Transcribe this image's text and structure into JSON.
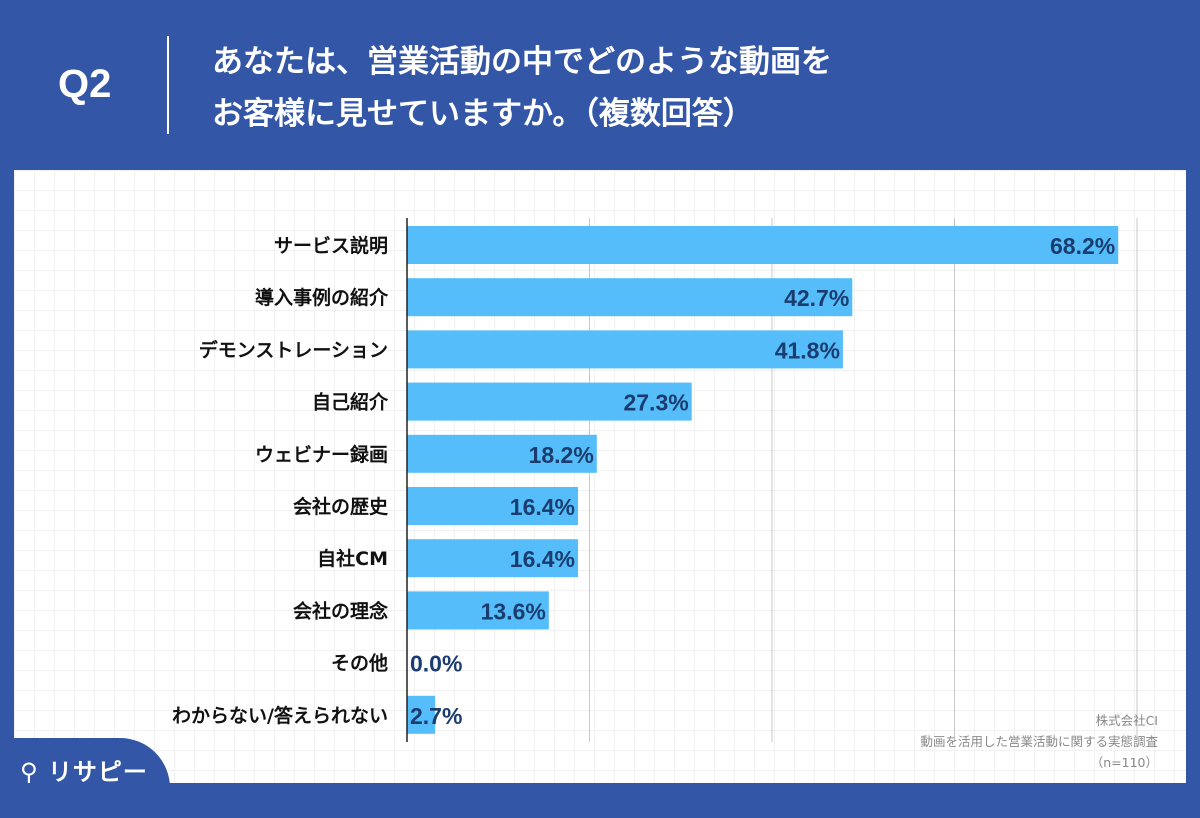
{
  "header": {
    "question_no": "Q2",
    "title_line1": "あなたは、営業活動の中でどのような動画を",
    "title_line2": "お客様に見せていますか。（複数回答）"
  },
  "source": {
    "company": "株式会社CI",
    "survey": "動画を活用した営業活動に関する実態調査",
    "sample": "（n=110）"
  },
  "logo": {
    "text": "リサピー"
  },
  "colors": {
    "background": "#3356a6",
    "bar": "#55bdfa",
    "label": "#1b3c6e"
  },
  "chart_data": {
    "type": "bar",
    "orientation": "horizontal",
    "categories": [
      "サービス説明",
      "導入事例の紹介",
      "デモンストレーション",
      "自己紹介",
      "ウェビナー録画",
      "会社の歴史",
      "自社CM",
      "会社の理念",
      "その他",
      "わからない/答えられない"
    ],
    "values": [
      68.2,
      42.7,
      41.8,
      27.3,
      18.2,
      16.4,
      16.4,
      13.6,
      0.0,
      2.7
    ],
    "value_labels": [
      "68.2%",
      "42.7%",
      "41.8%",
      "27.3%",
      "18.2%",
      "16.4%",
      "16.4%",
      "13.6%",
      "0.0%",
      "2.7%"
    ],
    "xlim": [
      0,
      70
    ],
    "grid": true,
    "unit": "%"
  }
}
